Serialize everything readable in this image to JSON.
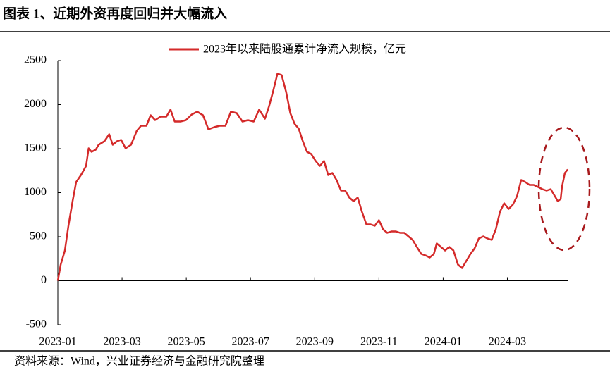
{
  "chart_data": {
    "type": "line",
    "title": "图表 1、近期外资再度回归并大幅流入",
    "source": "资料来源：Wind，兴业证券经济与金融研究院整理",
    "x": [
      0,
      0.09,
      0.22,
      0.33,
      0.46,
      0.57,
      0.72,
      0.88,
      0.96,
      1.05,
      1.18,
      1.27,
      1.45,
      1.6,
      1.71,
      1.84,
      1.97,
      2.11,
      2.28,
      2.46,
      2.59,
      2.76,
      2.89,
      3.03,
      3.2,
      3.38,
      3.51,
      3.64,
      3.82,
      3.99,
      4.17,
      4.34,
      4.52,
      4.69,
      4.87,
      5.04,
      5.22,
      5.39,
      5.57,
      5.75,
      5.92,
      6.1,
      6.27,
      6.45,
      6.58,
      6.71,
      6.84,
      6.97,
      7.11,
      7.24,
      7.37,
      7.5,
      7.63,
      7.76,
      7.89,
      8.03,
      8.16,
      8.29,
      8.42,
      8.55,
      8.68,
      8.82,
      8.95,
      9.08,
      9.21,
      9.34,
      9.47,
      9.61,
      9.74,
      9.87,
      10,
      10.13,
      10.26,
      10.39,
      10.53,
      10.66,
      10.79,
      10.92,
      11.05,
      11.18,
      11.32,
      11.45,
      11.58,
      11.71,
      11.8,
      11.93,
      12.06,
      12.19,
      12.32,
      12.46,
      12.59,
      12.72,
      12.85,
      12.98,
      13.11,
      13.25,
      13.38,
      13.51,
      13.64,
      13.77,
      13.9,
      14.04,
      14.17,
      14.3,
      14.43,
      14.56,
      14.69,
      14.82,
      14.96,
      15.09,
      15.22,
      15.35,
      15.48,
      15.57,
      15.66,
      15.7,
      15.79,
      15.88
    ],
    "series": [
      {
        "name": "2023年以来陆股通累计净流入规模，亿元",
        "color": "#d42a2a",
        "values": [
          0,
          184,
          344,
          624,
          904,
          1120,
          1200,
          1304,
          1504,
          1464,
          1488,
          1544,
          1584,
          1664,
          1544,
          1584,
          1600,
          1504,
          1544,
          1704,
          1760,
          1760,
          1880,
          1824,
          1864,
          1864,
          1944,
          1808,
          1808,
          1824,
          1888,
          1920,
          1880,
          1720,
          1744,
          1760,
          1760,
          1920,
          1904,
          1808,
          1824,
          1808,
          1944,
          1840,
          1984,
          2160,
          2352,
          2336,
          2144,
          1904,
          1784,
          1728,
          1584,
          1464,
          1440,
          1360,
          1304,
          1360,
          1200,
          1224,
          1144,
          1024,
          1024,
          944,
          904,
          944,
          784,
          640,
          640,
          624,
          688,
          584,
          544,
          560,
          560,
          544,
          544,
          504,
          464,
          384,
          304,
          288,
          264,
          304,
          424,
          384,
          344,
          384,
          344,
          184,
          144,
          224,
          304,
          368,
          480,
          504,
          480,
          464,
          584,
          784,
          880,
          816,
          864,
          960,
          1144,
          1120,
          1088,
          1088,
          1064,
          1040,
          1024,
          1040,
          960,
          904,
          928,
          1064,
          1224,
          1264
        ]
      }
    ],
    "xlim": [
      0,
      15.9
    ],
    "xticks": [
      {
        "value": 0,
        "label": "2023-01"
      },
      {
        "value": 2,
        "label": "2023-03"
      },
      {
        "value": 4,
        "label": "2023-05"
      },
      {
        "value": 6,
        "label": "2023-07"
      },
      {
        "value": 8,
        "label": "2023-09"
      },
      {
        "value": 10,
        "label": "2023-11"
      },
      {
        "value": 12,
        "label": "2024-01"
      },
      {
        "value": 14,
        "label": "2024-03"
      }
    ],
    "ylim": [
      -500,
      2500
    ],
    "yticks": [
      -500,
      0,
      500,
      1000,
      1500,
      2000,
      2500
    ],
    "grid": false
  }
}
